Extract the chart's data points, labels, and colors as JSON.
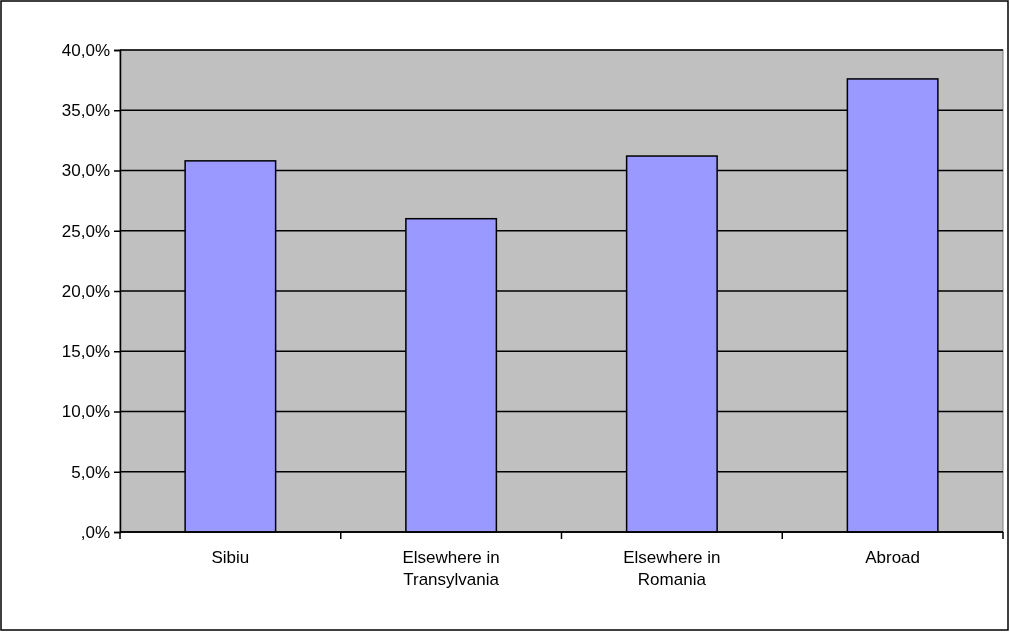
{
  "chart_data": {
    "type": "bar",
    "categories": [
      "Sibiu",
      "Elsewhere in Transylvania",
      "Elsewhere in Romania",
      "Abroad"
    ],
    "values": [
      30.8,
      26.0,
      31.2,
      37.6
    ],
    "color": "#9999ff",
    "ylim": [
      0,
      40
    ],
    "yticks": [
      {
        "value": 0,
        "label": ",0%"
      },
      {
        "value": 5,
        "label": "5,0%"
      },
      {
        "value": 10,
        "label": "10,0%"
      },
      {
        "value": 15,
        "label": "15,0%"
      },
      {
        "value": 20,
        "label": "20,0%"
      },
      {
        "value": 25,
        "label": "25,0%"
      },
      {
        "value": 30,
        "label": "30,0%"
      },
      {
        "value": 35,
        "label": "35,0%"
      },
      {
        "value": 40,
        "label": "40,0%"
      }
    ],
    "grid": "y"
  }
}
